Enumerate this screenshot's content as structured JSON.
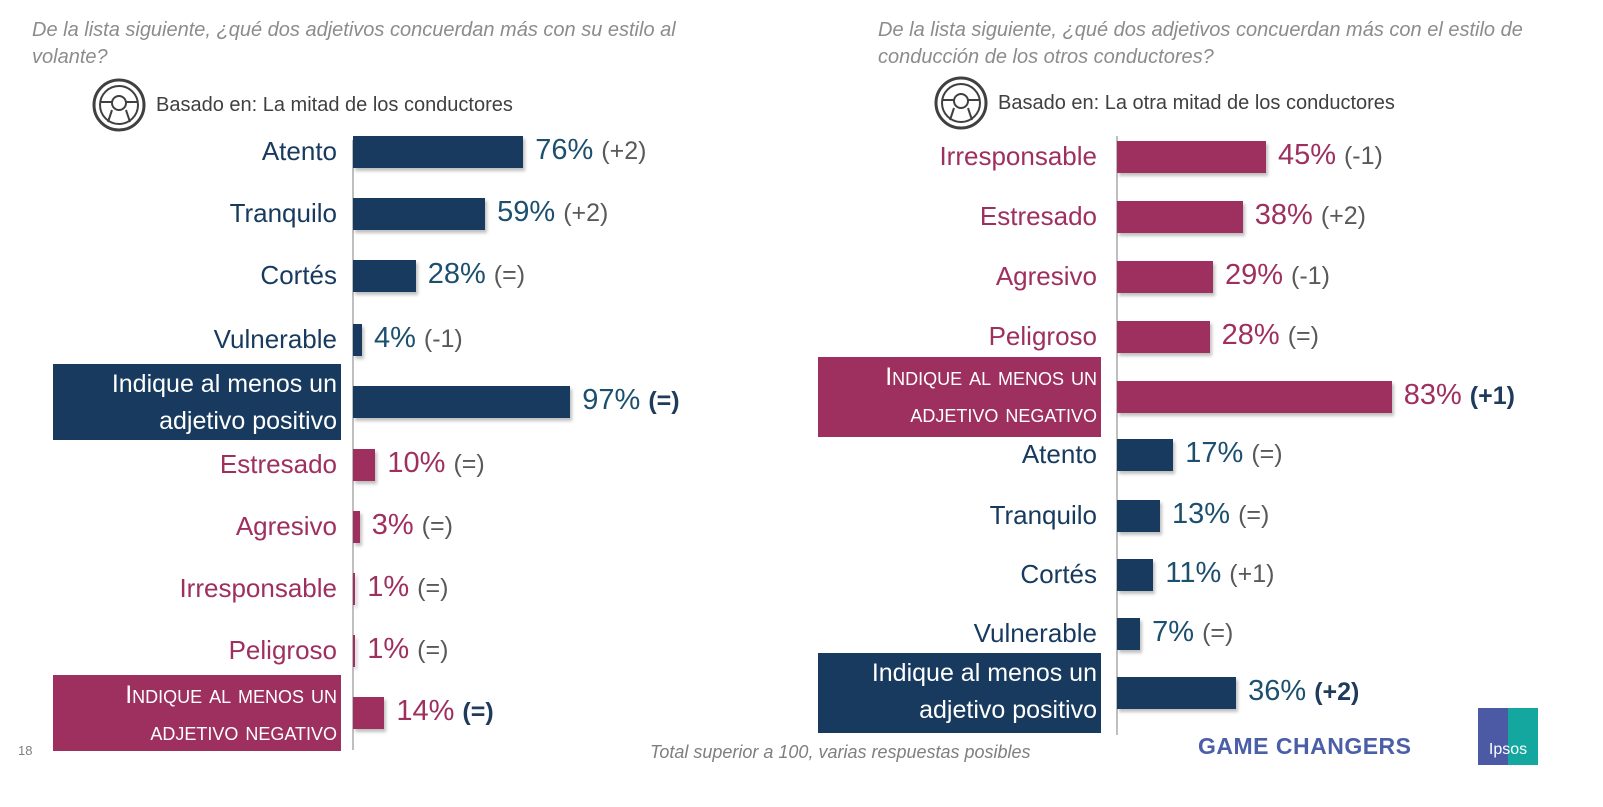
{
  "colors": {
    "positive": "#173a5e",
    "negative": "#9e3060",
    "positive_text": "#1d4f6e",
    "negative_text": "#9e3060",
    "change": "#595959"
  },
  "chart_data": [
    {
      "type": "bar",
      "orientation": "horizontal",
      "title": "De la lista siguiente, ¿qué dos adjetivos concuerdan más con su estilo al volante?",
      "base": "Basado en: La mitad de los conductores",
      "unit": "%",
      "rows": [
        {
          "label": "Atento",
          "value": 76,
          "change": "(+2)",
          "group": "positive",
          "highlight": false
        },
        {
          "label": "Tranquilo",
          "value": 59,
          "change": "(+2)",
          "group": "positive",
          "highlight": false
        },
        {
          "label": "Cortés",
          "value": 28,
          "change": "(=)",
          "group": "positive",
          "highlight": false
        },
        {
          "label": "Vulnerable",
          "value": 4,
          "change": "(-1)",
          "group": "positive",
          "highlight": false
        },
        {
          "label": "Indique al menos un adjetivo positivo",
          "value": 97,
          "change": "(=)",
          "group": "positive",
          "highlight": true
        },
        {
          "label": "Estresado",
          "value": 10,
          "change": "(=)",
          "group": "negative",
          "highlight": false
        },
        {
          "label": "Agresivo",
          "value": 3,
          "change": "(=)",
          "group": "negative",
          "highlight": false
        },
        {
          "label": "Irresponsable",
          "value": 1,
          "change": "(=)",
          "group": "negative",
          "highlight": false
        },
        {
          "label": "Peligroso",
          "value": 1,
          "change": "(=)",
          "group": "negative",
          "highlight": false
        },
        {
          "label": "Indique al menos un adjetivo negativo",
          "value": 14,
          "change": "(=)",
          "group": "negative",
          "highlight": true
        }
      ]
    },
    {
      "type": "bar",
      "orientation": "horizontal",
      "title": "De la lista siguiente, ¿qué dos adjetivos concuerdan más con el estilo de conducción de los otros conductores?",
      "base": "Basado en: La otra mitad de los conductores",
      "unit": "%",
      "rows": [
        {
          "label": "Irresponsable",
          "value": 45,
          "change": "(-1)",
          "group": "negative",
          "highlight": false
        },
        {
          "label": "Estresado",
          "value": 38,
          "change": "(+2)",
          "group": "negative",
          "highlight": false
        },
        {
          "label": "Agresivo",
          "value": 29,
          "change": "(-1)",
          "group": "negative",
          "highlight": false
        },
        {
          "label": "Peligroso",
          "value": 28,
          "change": "(=)",
          "group": "negative",
          "highlight": false
        },
        {
          "label": "Indique al menos un adjetivo negativo",
          "value": 83,
          "change": "(+1)",
          "group": "negative",
          "highlight": true
        },
        {
          "label": "Atento",
          "value": 17,
          "change": "(=)",
          "group": "positive",
          "highlight": false
        },
        {
          "label": "Tranquilo",
          "value": 13,
          "change": "(=)",
          "group": "positive",
          "highlight": false
        },
        {
          "label": "Cortés",
          "value": 11,
          "change": "(+1)",
          "group": "positive",
          "highlight": false
        },
        {
          "label": "Vulnerable",
          "value": 7,
          "change": "(=)",
          "group": "positive",
          "highlight": false
        },
        {
          "label": "Indique al menos un adjetivo positivo",
          "value": 36,
          "change": "(+2)",
          "group": "positive",
          "highlight": true
        }
      ]
    }
  ],
  "footer": {
    "note": "Total superior a 100, varias respuestas posibles",
    "page": "18",
    "brand": "GAME CHANGERS",
    "logo": "Ipsos"
  }
}
